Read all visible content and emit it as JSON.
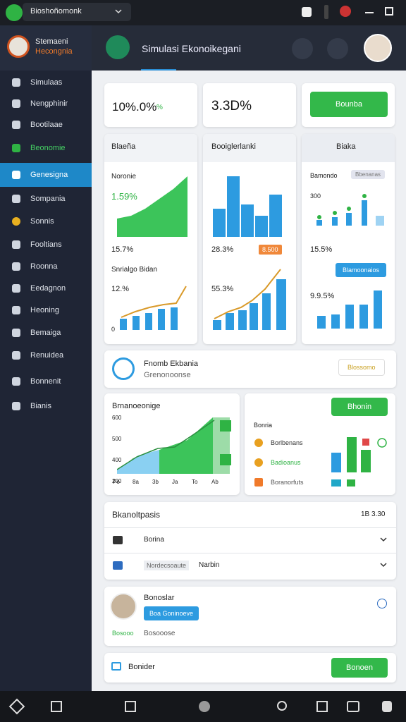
{
  "top_bar": {
    "tab": "Bioshoñomonk"
  },
  "sidebar": {
    "brand_top": "Stemaeni",
    "brand_bottom": "Hecongnia",
    "items": [
      "Simulaas",
      "Nengphinir",
      "Bootilaae",
      "Beonomie",
      "Genesigna",
      "Sompania",
      "Sonnis",
      "Fooltians",
      "Roonna",
      "Eedagnon",
      "Heoning",
      "Bemaiga",
      "Renuidea",
      "Bonnenit",
      "Bianis"
    ]
  },
  "header": {
    "title": "Simulasi Ekonoikegani"
  },
  "stats": {
    "first": "10%.0%",
    "first_unit": "%",
    "second": "3.3D%",
    "button": "Bounba"
  },
  "panels": [
    {
      "title": "Blaeña",
      "label": "Noronie",
      "value": "1.59%",
      "value2": "15.7%",
      "label2": "Snrialgo Bidan",
      "value3": "12.%",
      "axis": "0"
    },
    {
      "title": "Booiglerlanki",
      "value2": "28.3%",
      "badge": "8.500",
      "value3": "55.3%"
    },
    {
      "title": "Biaka",
      "label": "Bamondo",
      "badge": "Bbenanas",
      "axis": "300",
      "value2": "15.5%",
      "button": "Blamoonaios",
      "value3": "9.9.5%"
    }
  ],
  "info": {
    "title": "Fnomb Ekbania",
    "subtitle": "Grenonoonse",
    "button": "Blossomo"
  },
  "trend": {
    "title": "Brnanoeonige",
    "y_labels": [
      "600",
      "500",
      "400",
      "200"
    ],
    "x_labels": [
      "Po",
      "8a",
      "3b",
      "Ja",
      "To",
      "Ab"
    ]
  },
  "legend_card": {
    "button": "Bhonin",
    "title": "Bonria",
    "items": [
      "Borlbenans",
      "Badioanus",
      "Boranorfuts"
    ]
  },
  "analysis": {
    "title": "Bkanoltpasis",
    "meta": "1B 3.30",
    "rows": [
      {
        "label": "Borina"
      },
      {
        "label": "Nordecsoaute",
        "extra": "Narbin"
      }
    ]
  },
  "profile": {
    "name": "Bonoslar",
    "button": "Boa Goninoeve",
    "tag": "Bosooo",
    "note": "Bosooose"
  },
  "footer_card": {
    "label": "Bonider",
    "button": "Bonoen"
  }
}
